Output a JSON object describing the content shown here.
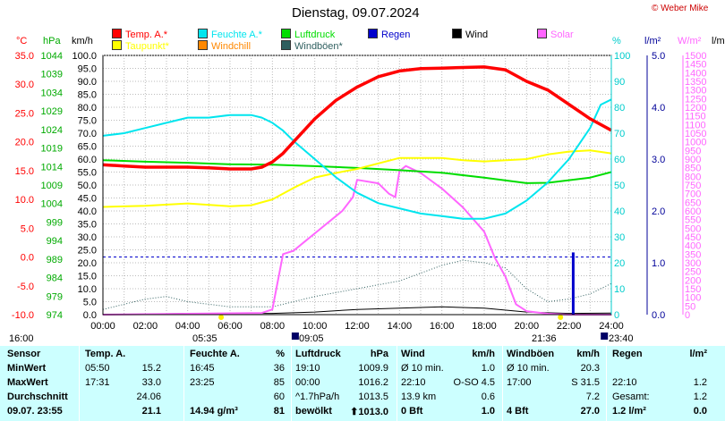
{
  "watermark": "© Weber Mike",
  "units": {
    "temp": "°C",
    "pressure": "hPa",
    "wind": "km/h",
    "humidity": "%",
    "rain": "l/m²",
    "solar": "W/m²",
    "rain_right": "l/m"
  },
  "colors": {
    "temp": "#ff0000",
    "humidity": "#00e5ee",
    "pressure": "#00dd00",
    "rain": "#0000cc",
    "wind": "#000000",
    "solar": "#ff66ff",
    "dewpoint": "#ffff00",
    "windchill": "#ff8800",
    "gusts": "#2f5f5f",
    "temp_axis": "#ff0000",
    "press_axis": "#00aa00",
    "hum_axis": "#00cccc",
    "rain_axis": "#000099",
    "solar_axis": "#ff66ff",
    "table_bg": "#ccffff"
  },
  "legend": [
    {
      "label": "Temp. A.*",
      "color": "#ff0000"
    },
    {
      "label": "Feuchte A.*",
      "color": "#00e5ee"
    },
    {
      "label": "Luftdruck",
      "color": "#00dd00"
    },
    {
      "label": "Regen",
      "color": "#0000cc"
    },
    {
      "label": "Wind",
      "color": "#000000"
    },
    {
      "label": "Solar",
      "color": "#ff66ff"
    },
    {
      "label": "Taupunkt*",
      "color": "#ffff00"
    },
    {
      "label": "Windchill",
      "color": "#ff8800"
    },
    {
      "label": "Windböen*",
      "color": "#2f5f5f"
    }
  ],
  "chart_data": {
    "type": "line",
    "title": "Dienstag, 09.07.2024",
    "x_ticks": [
      "00:00",
      "02:00",
      "04:00",
      "06:00",
      "08:00",
      "10:00",
      "12:00",
      "14:00",
      "16:00",
      "18:00",
      "20:00",
      "22:00",
      "24:00"
    ],
    "x_range_hours": [
      0,
      24
    ],
    "axes": {
      "temp_ticks": [
        "35.0",
        "30.0",
        "25.0",
        "20.0",
        "15.0",
        "10.0",
        "5.0",
        "0.0",
        "-5.0",
        "-10.0"
      ],
      "pressure_ticks": [
        "1044",
        "1039",
        "1034",
        "1029",
        "1024",
        "1019",
        "1014",
        "1009",
        "1004",
        "999",
        "994",
        "989",
        "984",
        "979",
        "974"
      ],
      "wind_ticks": [
        "100.0",
        "95.0",
        "90.0",
        "85.0",
        "80.0",
        "75.0",
        "70.0",
        "65.0",
        "60.0",
        "55.0",
        "50.0",
        "45.0",
        "40.0",
        "35.0",
        "30.0",
        "25.0",
        "20.0",
        "15.0",
        "10.0",
        "5.0",
        "0.0"
      ],
      "humidity_ticks": [
        "100",
        "90",
        "80",
        "70",
        "60",
        "50",
        "40",
        "30",
        "20",
        "10",
        "0"
      ],
      "rain_ticks": [
        "5.0",
        "4.0",
        "3.0",
        "2.0",
        "1.0",
        "0.0"
      ],
      "solar_ticks": [
        "1500",
        "1450",
        "1400",
        "1350",
        "1300",
        "1250",
        "1200",
        "1150",
        "1100",
        "1050",
        "1000",
        "950",
        "900",
        "850",
        "800",
        "750",
        "700",
        "650",
        "600",
        "550",
        "500",
        "450",
        "400",
        "350",
        "300",
        "250",
        "200",
        "150",
        "100",
        "50",
        "0"
      ],
      "temp_range": [
        -10,
        35
      ],
      "pressure_range": [
        974,
        1044
      ],
      "humidity_range": [
        0,
        100
      ],
      "rain_range": [
        0,
        5
      ],
      "solar_range": [
        0,
        1500
      ]
    },
    "series": [
      {
        "name": "Temp. A.*",
        "axis": "temp",
        "x": [
          0,
          1,
          2,
          3,
          4,
          5,
          6,
          7,
          7.5,
          8,
          8.5,
          9,
          10,
          11,
          12,
          13,
          14,
          15,
          16,
          17,
          18,
          19,
          20,
          21,
          22,
          23,
          24
        ],
        "y": [
          16.0,
          15.8,
          15.6,
          15.6,
          15.6,
          15.5,
          15.3,
          15.3,
          15.6,
          16.5,
          18.0,
          20.0,
          24.0,
          27.2,
          29.5,
          31.3,
          32.3,
          32.7,
          32.8,
          32.9,
          33.0,
          32.5,
          30.5,
          29.0,
          26.5,
          24.0,
          22.0
        ]
      },
      {
        "name": "Feuchte A.*",
        "axis": "humidity",
        "x": [
          0,
          1,
          2,
          3,
          4,
          5,
          6,
          7,
          7.5,
          8,
          8.5,
          9,
          10,
          11,
          12,
          13,
          14,
          15,
          16,
          17,
          18,
          19,
          20,
          21,
          22,
          23,
          23.5,
          24
        ],
        "y": [
          69,
          70,
          72,
          74,
          76,
          76,
          77,
          77,
          76,
          74,
          71,
          67,
          60,
          53,
          47,
          43,
          41,
          39,
          38,
          37,
          37,
          39,
          44,
          51,
          60,
          72,
          81,
          83
        ]
      },
      {
        "name": "Luftdruck",
        "axis": "pressure",
        "x": [
          0,
          2,
          4,
          6,
          8,
          10,
          12,
          14,
          16,
          18,
          20,
          21,
          22,
          23,
          24
        ],
        "y": [
          1015.7,
          1015.3,
          1015.0,
          1014.6,
          1014.5,
          1014.1,
          1013.6,
          1013.0,
          1012.3,
          1011.0,
          1009.5,
          1009.6,
          1010.3,
          1011.0,
          1012.5
        ]
      },
      {
        "name": "Taupunkt*",
        "axis": "temp",
        "x": [
          0,
          2,
          4,
          6,
          7,
          8,
          9,
          10,
          11,
          12,
          14,
          16,
          17,
          18,
          20,
          21,
          22,
          23,
          24
        ],
        "y": [
          8.7,
          8.9,
          9.3,
          8.8,
          9.0,
          10.0,
          12.0,
          13.8,
          14.6,
          15.3,
          17.2,
          17.2,
          16.8,
          16.6,
          17.0,
          17.8,
          18.3,
          18.5,
          18.0
        ]
      },
      {
        "name": "Solar",
        "axis": "solar",
        "x": [
          0,
          7.5,
          8,
          8.5,
          9,
          9.5,
          10,
          11,
          11.3,
          11.8,
          12,
          13,
          13.5,
          13.8,
          14,
          14.3,
          15,
          16,
          17,
          18,
          18.5,
          19,
          19.5,
          20,
          21,
          22,
          24
        ],
        "y": [
          0,
          10,
          30,
          350,
          370,
          420,
          470,
          570,
          600,
          680,
          780,
          760,
          700,
          680,
          830,
          860,
          820,
          730,
          620,
          480,
          330,
          220,
          60,
          20,
          5,
          0,
          0
        ]
      },
      {
        "name": "Wind",
        "axis": "wind",
        "x": [
          0,
          4,
          8,
          10,
          12,
          14,
          16,
          18,
          20,
          22,
          24
        ],
        "y": [
          0,
          0.5,
          0.5,
          1.0,
          2.0,
          2.5,
          3.0,
          2.5,
          1.0,
          0.5,
          0.6
        ]
      },
      {
        "name": "Windböen*",
        "axis": "wind",
        "x": [
          0,
          2,
          3,
          4,
          6,
          8,
          10,
          12,
          14,
          15,
          16,
          17,
          18,
          19,
          20,
          21,
          22,
          23,
          24
        ],
        "y": [
          2,
          6,
          7,
          5,
          3,
          3,
          7,
          10,
          13,
          16,
          19,
          21,
          20,
          18,
          10,
          5,
          6,
          8,
          12
        ]
      },
      {
        "name": "Regen",
        "axis": "rain",
        "bars": [
          {
            "x": 22.2,
            "y": 1.2
          }
        ]
      }
    ],
    "reference_line": {
      "axis": "temp",
      "value": 0.0,
      "style": "dashed"
    }
  },
  "sun_markers": {
    "left_time": "16:00",
    "sunrise": "05:35",
    "moonrise": "09:05",
    "sunset": "21:36",
    "moonset": "23:40"
  },
  "table": {
    "header": [
      "Sensor",
      "Temp. A.",
      "",
      "Feuchte A.",
      "%",
      "Luftdruck",
      "hPa",
      "Wind",
      "km/h",
      "Windböen",
      "km/h",
      "Regen",
      "l/m²"
    ],
    "rows": [
      [
        "MinWert",
        "05:50",
        "15.2",
        "16:45",
        "36",
        "19:10",
        "1009.9",
        "Ø 10 min.",
        "1.0",
        "Ø 10 min.",
        "20.3",
        "",
        ""
      ],
      [
        "MaxWert",
        "17:31",
        "33.0",
        "23:25",
        "85",
        "00:00",
        "1016.2",
        "22:10",
        "O-SO 4.5",
        "17:00",
        "S 31.5",
        "22:10",
        "1.2"
      ],
      [
        "Durchschnitt",
        "",
        "24.06",
        "",
        "60",
        "^1.7hPa/h",
        "1013.5",
        "13.9 km",
        "0.6",
        "",
        "7.2",
        "Gesamt:",
        "1.2"
      ],
      [
        "09.07. 23:55",
        "",
        "21.1",
        "14.94 g/m³",
        "81",
        "bewölkt",
        "⬆1013.0",
        "0 Bft",
        "1.0",
        "4 Bft",
        "27.0",
        "1.2 l/m²",
        "0.0"
      ]
    ]
  }
}
